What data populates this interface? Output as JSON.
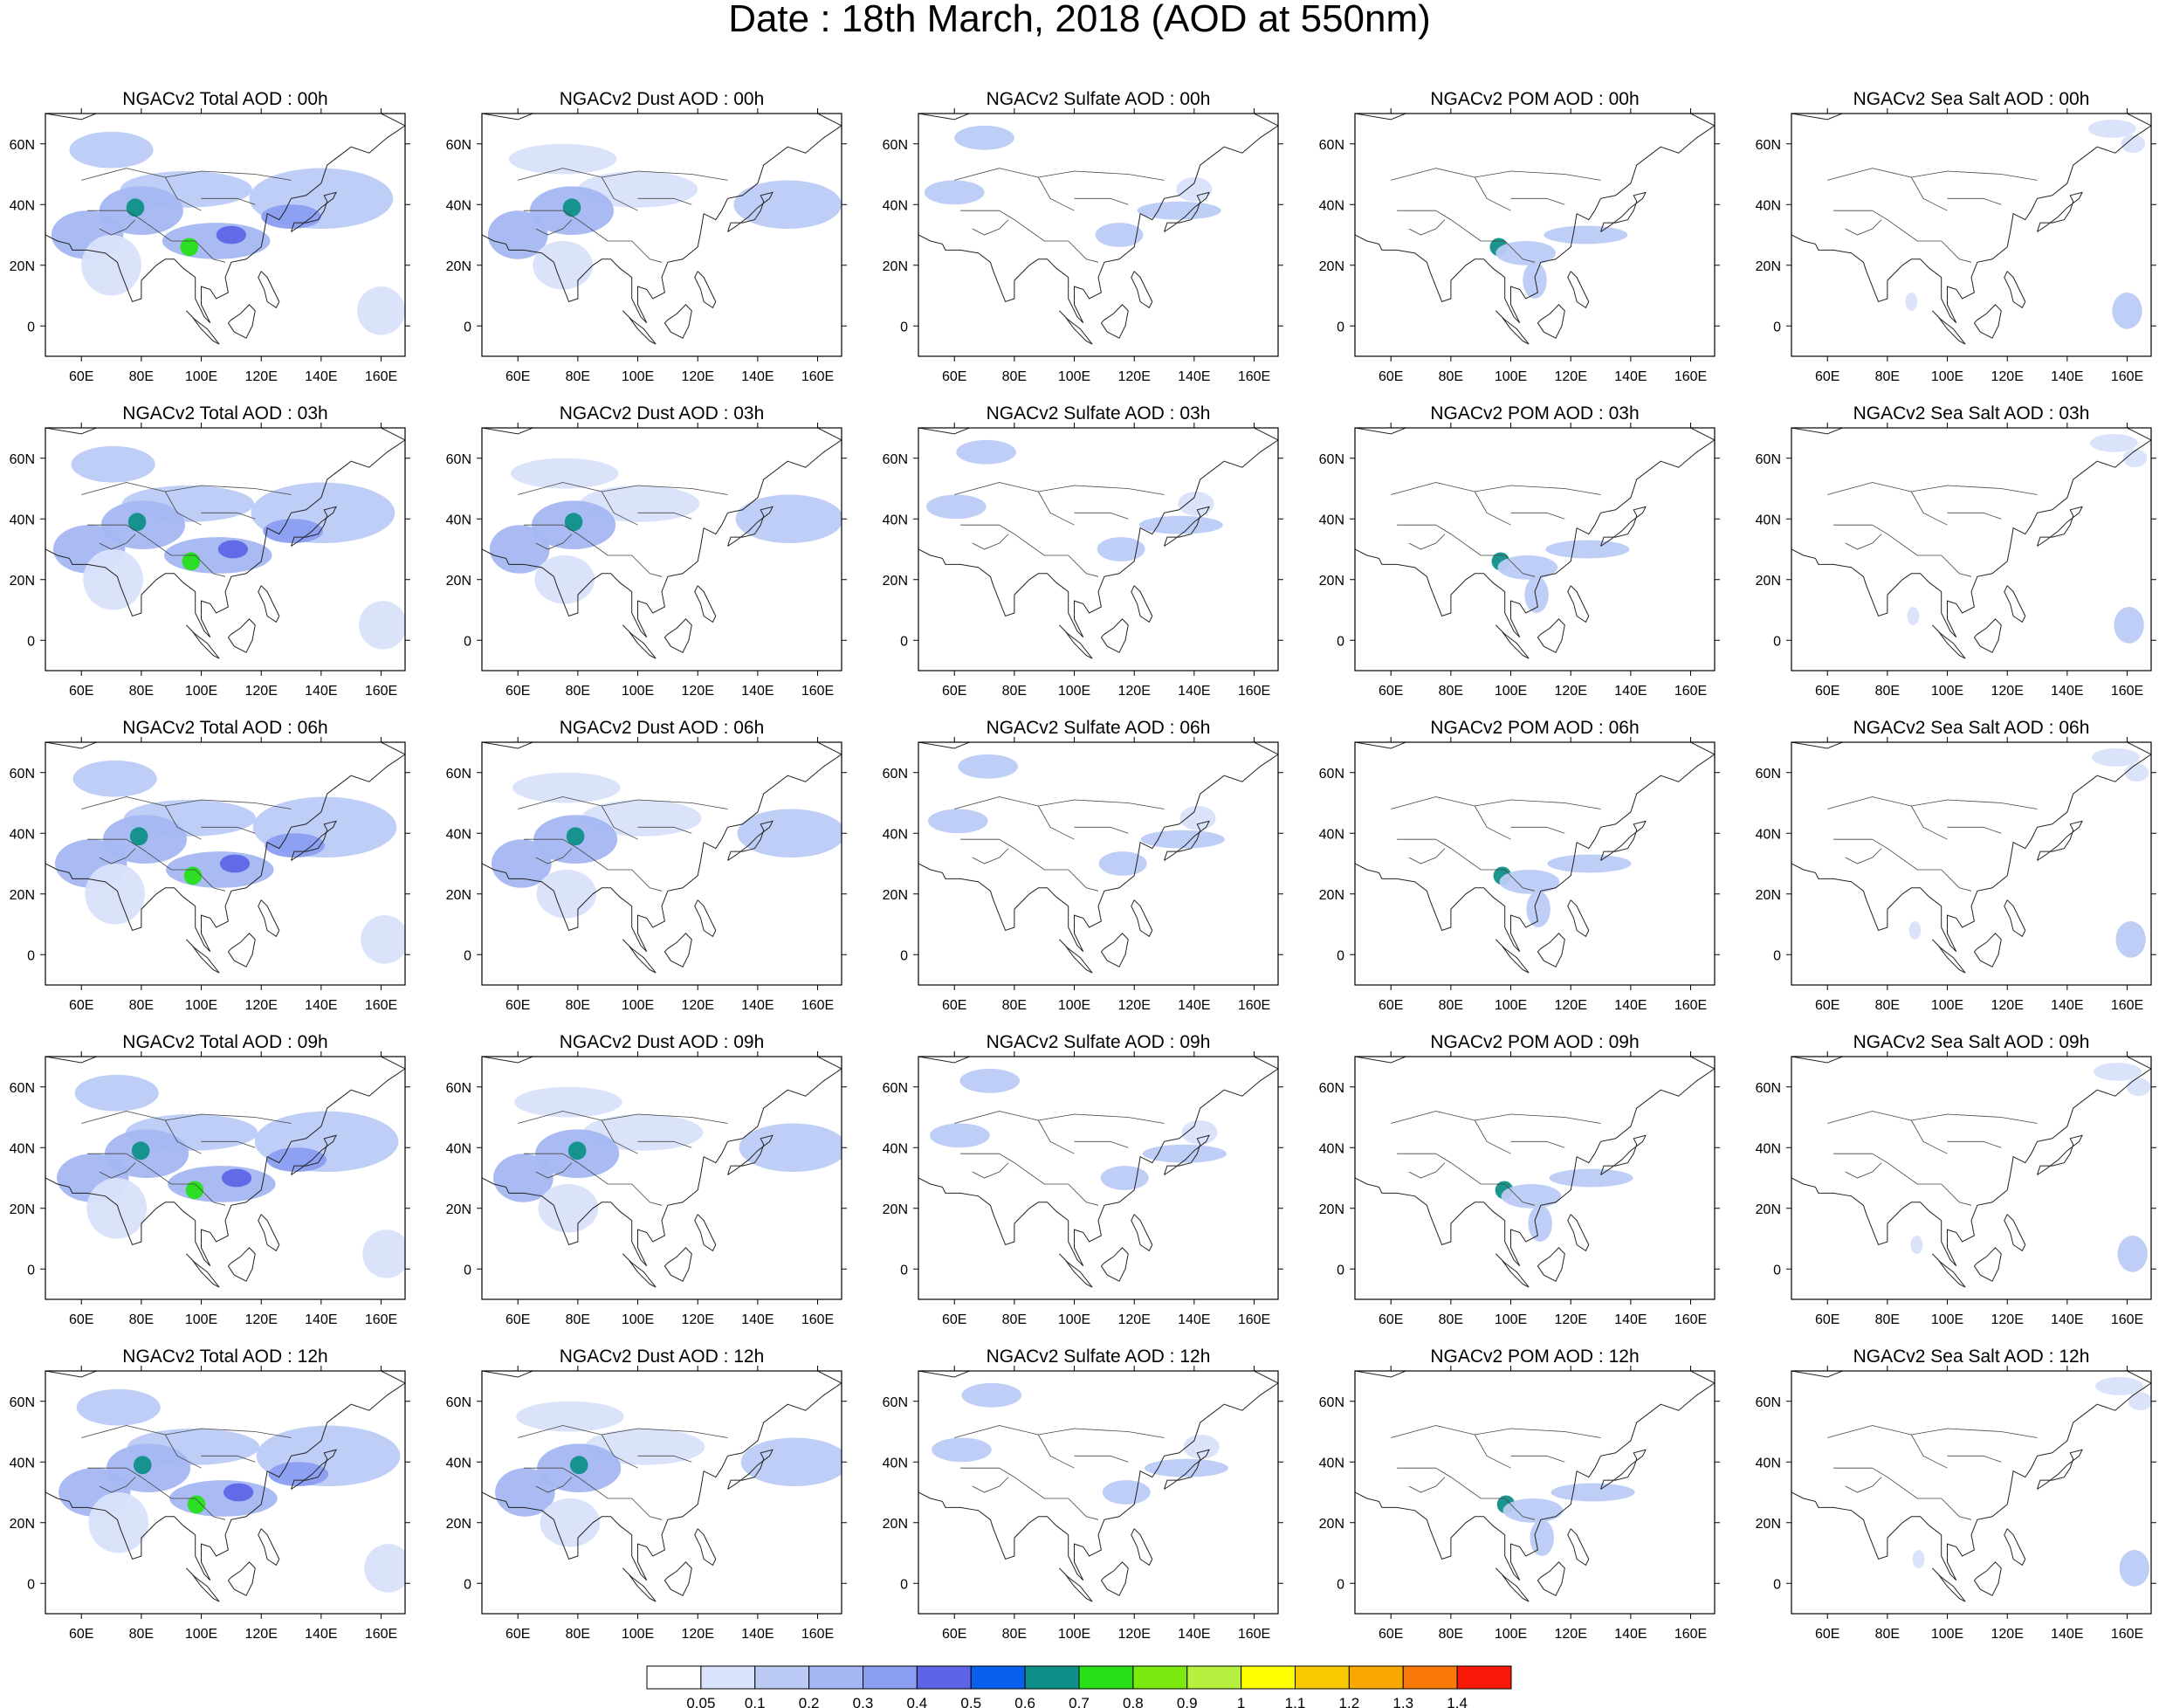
{
  "page": {
    "title": "Date : 18th March, 2018 (AOD at 550nm)"
  },
  "chart_data": {
    "type": "heatmap",
    "title": "Date : 18th March, 2018 (AOD at 550nm)",
    "variable": "AOD at 550nm",
    "model": "NGACv2",
    "species": [
      "Total",
      "Dust",
      "Sulfate",
      "POM",
      "Sea Salt"
    ],
    "hours": [
      "00h",
      "03h",
      "06h",
      "09h",
      "12h"
    ],
    "panel_titles": [
      [
        "NGACv2 Total AOD : 00h",
        "NGACv2 Dust AOD : 00h",
        "NGACv2 Sulfate AOD : 00h",
        "NGACv2 POM AOD : 00h",
        "NGACv2 Sea Salt AOD : 00h"
      ],
      [
        "NGACv2 Total AOD : 03h",
        "NGACv2 Dust AOD : 03h",
        "NGACv2 Sulfate AOD : 03h",
        "NGACv2 POM AOD : 03h",
        "NGACv2 Sea Salt AOD : 03h"
      ],
      [
        "NGACv2 Total AOD : 06h",
        "NGACv2 Dust AOD : 06h",
        "NGACv2 Sulfate AOD : 06h",
        "NGACv2 POM AOD : 06h",
        "NGACv2 Sea Salt AOD : 06h"
      ],
      [
        "NGACv2 Total AOD : 09h",
        "NGACv2 Dust AOD : 09h",
        "NGACv2 Sulfate AOD : 09h",
        "NGACv2 POM AOD : 09h",
        "NGACv2 Sea Salt  AOD : 09h"
      ],
      [
        "NGACv2 Total AOD  : 12h",
        "NGACv2 Dust AOD : 12h",
        "NGACv2 Sulfate AOD : 12h",
        "NGACv2 POM  AOD : 12h",
        "NGACv2 Sea Salt  AOD : 12h"
      ]
    ],
    "x_ticks": [
      "60E",
      "80E",
      "100E",
      "120E",
      "140E",
      "160E"
    ],
    "x_tick_values": [
      60,
      80,
      100,
      120,
      140,
      160
    ],
    "y_ticks": [
      "0",
      "20N",
      "40N",
      "60N"
    ],
    "y_tick_values": [
      0,
      20,
      40,
      60
    ],
    "xlim": [
      48,
      168
    ],
    "ylim": [
      -10,
      70
    ],
    "colorbar": {
      "labels": [
        "0.05",
        "0.1",
        "0.2",
        "0.3",
        "0.4",
        "0.5",
        "0.6",
        "0.7",
        "0.8",
        "0.9",
        "1",
        "1.1",
        "1.2",
        "1.3",
        "1.4"
      ],
      "levels": [
        0.05,
        0.1,
        0.2,
        0.3,
        0.4,
        0.5,
        0.6,
        0.7,
        0.8,
        0.9,
        1.0,
        1.1,
        1.2,
        1.3,
        1.4
      ],
      "colors": [
        "#ffffff",
        "#d9e2fb",
        "#bccbf5",
        "#a5b7f2",
        "#8a9df0",
        "#5d65e6",
        "#0a60ee",
        "#0e9088",
        "#26e018",
        "#7cea10",
        "#b8f040",
        "#ffff00",
        "#f8c800",
        "#f8a800",
        "#f87808",
        "#f81808"
      ]
    },
    "features": [
      {
        "species": "Total",
        "blobs": [
          {
            "lon": 70,
            "lat": 58,
            "rx": 14,
            "ry": 6,
            "level": 2
          },
          {
            "lon": 95,
            "lat": 45,
            "rx": 22,
            "ry": 6,
            "level": 2
          },
          {
            "lon": 140,
            "lat": 42,
            "rx": 24,
            "ry": 10,
            "level": 2
          },
          {
            "lon": 80,
            "lat": 38,
            "rx": 14,
            "ry": 8,
            "level": 3
          },
          {
            "lon": 62,
            "lat": 30,
            "rx": 12,
            "ry": 8,
            "level": 3
          },
          {
            "lon": 105,
            "lat": 28,
            "rx": 18,
            "ry": 6,
            "level": 3
          },
          {
            "lon": 130,
            "lat": 36,
            "rx": 10,
            "ry": 4,
            "level": 4
          },
          {
            "lon": 78,
            "lat": 39,
            "rx": 3,
            "ry": 3,
            "level": 7
          },
          {
            "lon": 96,
            "lat": 26,
            "rx": 3,
            "ry": 3,
            "level": 8
          },
          {
            "lon": 110,
            "lat": 30,
            "rx": 5,
            "ry": 3,
            "level": 5
          },
          {
            "lon": 70,
            "lat": 20,
            "rx": 10,
            "ry": 10,
            "level": 1
          },
          {
            "lon": 160,
            "lat": 5,
            "rx": 8,
            "ry": 8,
            "level": 1
          }
        ]
      },
      {
        "species": "Dust",
        "blobs": [
          {
            "lon": 75,
            "lat": 55,
            "rx": 18,
            "ry": 5,
            "level": 1
          },
          {
            "lon": 100,
            "lat": 45,
            "rx": 20,
            "ry": 6,
            "level": 1
          },
          {
            "lon": 78,
            "lat": 38,
            "rx": 14,
            "ry": 8,
            "level": 3
          },
          {
            "lon": 60,
            "lat": 30,
            "rx": 10,
            "ry": 8,
            "level": 3
          },
          {
            "lon": 150,
            "lat": 40,
            "rx": 18,
            "ry": 8,
            "level": 2
          },
          {
            "lon": 78,
            "lat": 39,
            "rx": 3,
            "ry": 3,
            "level": 7
          },
          {
            "lon": 75,
            "lat": 20,
            "rx": 10,
            "ry": 8,
            "level": 1
          }
        ]
      },
      {
        "species": "Sulfate",
        "blobs": [
          {
            "lon": 70,
            "lat": 62,
            "rx": 10,
            "ry": 4,
            "level": 2
          },
          {
            "lon": 60,
            "lat": 44,
            "rx": 10,
            "ry": 4,
            "level": 2
          },
          {
            "lon": 115,
            "lat": 30,
            "rx": 8,
            "ry": 4,
            "level": 2
          },
          {
            "lon": 135,
            "lat": 38,
            "rx": 14,
            "ry": 3,
            "level": 2
          },
          {
            "lon": 140,
            "lat": 45,
            "rx": 6,
            "ry": 4,
            "level": 1
          }
        ]
      },
      {
        "species": "POM",
        "blobs": [
          {
            "lon": 96,
            "lat": 26,
            "rx": 3,
            "ry": 3,
            "level": 7
          },
          {
            "lon": 105,
            "lat": 24,
            "rx": 10,
            "ry": 4,
            "level": 2
          },
          {
            "lon": 125,
            "lat": 30,
            "rx": 14,
            "ry": 3,
            "level": 2
          },
          {
            "lon": 108,
            "lat": 15,
            "rx": 4,
            "ry": 6,
            "level": 2
          }
        ]
      },
      {
        "species": "Sea Salt",
        "blobs": [
          {
            "lon": 155,
            "lat": 65,
            "rx": 8,
            "ry": 3,
            "level": 1
          },
          {
            "lon": 160,
            "lat": 5,
            "rx": 5,
            "ry": 6,
            "level": 2
          },
          {
            "lon": 88,
            "lat": 8,
            "rx": 2,
            "ry": 3,
            "level": 1
          },
          {
            "lon": 162,
            "lat": 60,
            "rx": 4,
            "ry": 3,
            "level": 1
          }
        ]
      }
    ]
  }
}
